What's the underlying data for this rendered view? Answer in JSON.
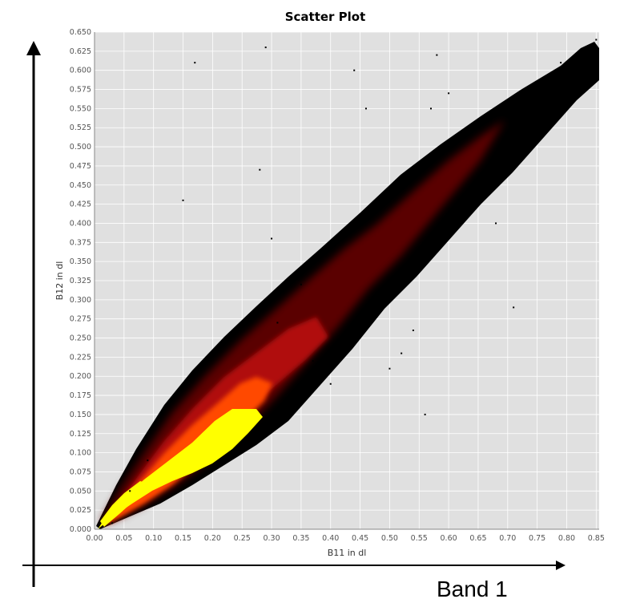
{
  "chart_data": {
    "type": "scatter",
    "title": "Scatter Plot",
    "xlabel": "B11 in dl",
    "ylabel": "B12 in dl",
    "xlim": [
      0.0,
      0.855
    ],
    "ylim": [
      0.0,
      0.65
    ],
    "x_ticks": [
      "0.00",
      "0.05",
      "0.10",
      "0.15",
      "0.20",
      "0.25",
      "0.30",
      "0.35",
      "0.40",
      "0.45",
      "0.50",
      "0.55",
      "0.60",
      "0.65",
      "0.70",
      "0.75",
      "0.80",
      "0.85"
    ],
    "y_ticks": [
      "0.000",
      "0.025",
      "0.050",
      "0.075",
      "0.100",
      "0.125",
      "0.150",
      "0.175",
      "0.200",
      "0.225",
      "0.250",
      "0.275",
      "0.300",
      "0.325",
      "0.350",
      "0.375",
      "0.400",
      "0.425",
      "0.450",
      "0.475",
      "0.500",
      "0.525",
      "0.550",
      "0.575",
      "0.600",
      "0.625",
      "0.650"
    ],
    "grid": true,
    "background": "#e0e0e0",
    "colormap": [
      "#000000",
      "#5a0000",
      "#b01010",
      "#ff4a00",
      "#ffff00"
    ],
    "density_ridge": {
      "x": [
        0.0,
        0.05,
        0.1,
        0.15,
        0.2,
        0.25,
        0.3,
        0.35,
        0.4,
        0.45,
        0.5,
        0.55,
        0.6,
        0.65,
        0.7,
        0.75,
        0.8,
        0.85
      ],
      "y": [
        0.0,
        0.036,
        0.065,
        0.095,
        0.125,
        0.155,
        0.185,
        0.215,
        0.245,
        0.285,
        0.325,
        0.375,
        0.425,
        0.475,
        0.515,
        0.555,
        0.595,
        0.625
      ]
    },
    "outlier_points": [
      {
        "x": 0.03,
        "y": 0.008
      },
      {
        "x": 0.06,
        "y": 0.05
      },
      {
        "x": 0.09,
        "y": 0.09
      },
      {
        "x": 0.15,
        "y": 0.43
      },
      {
        "x": 0.17,
        "y": 0.61
      },
      {
        "x": 0.28,
        "y": 0.47
      },
      {
        "x": 0.29,
        "y": 0.63
      },
      {
        "x": 0.3,
        "y": 0.38
      },
      {
        "x": 0.31,
        "y": 0.27
      },
      {
        "x": 0.35,
        "y": 0.32
      },
      {
        "x": 0.37,
        "y": 0.22
      },
      {
        "x": 0.4,
        "y": 0.19
      },
      {
        "x": 0.44,
        "y": 0.6
      },
      {
        "x": 0.46,
        "y": 0.55
      },
      {
        "x": 0.5,
        "y": 0.21
      },
      {
        "x": 0.52,
        "y": 0.23
      },
      {
        "x": 0.54,
        "y": 0.26
      },
      {
        "x": 0.56,
        "y": 0.15
      },
      {
        "x": 0.57,
        "y": 0.55
      },
      {
        "x": 0.58,
        "y": 0.62
      },
      {
        "x": 0.6,
        "y": 0.57
      },
      {
        "x": 0.68,
        "y": 0.4
      },
      {
        "x": 0.71,
        "y": 0.29
      },
      {
        "x": 0.74,
        "y": 0.58
      },
      {
        "x": 0.79,
        "y": 0.61
      },
      {
        "x": 0.85,
        "y": 0.64
      }
    ]
  },
  "annotations": {
    "band_label": "Band 1"
  }
}
